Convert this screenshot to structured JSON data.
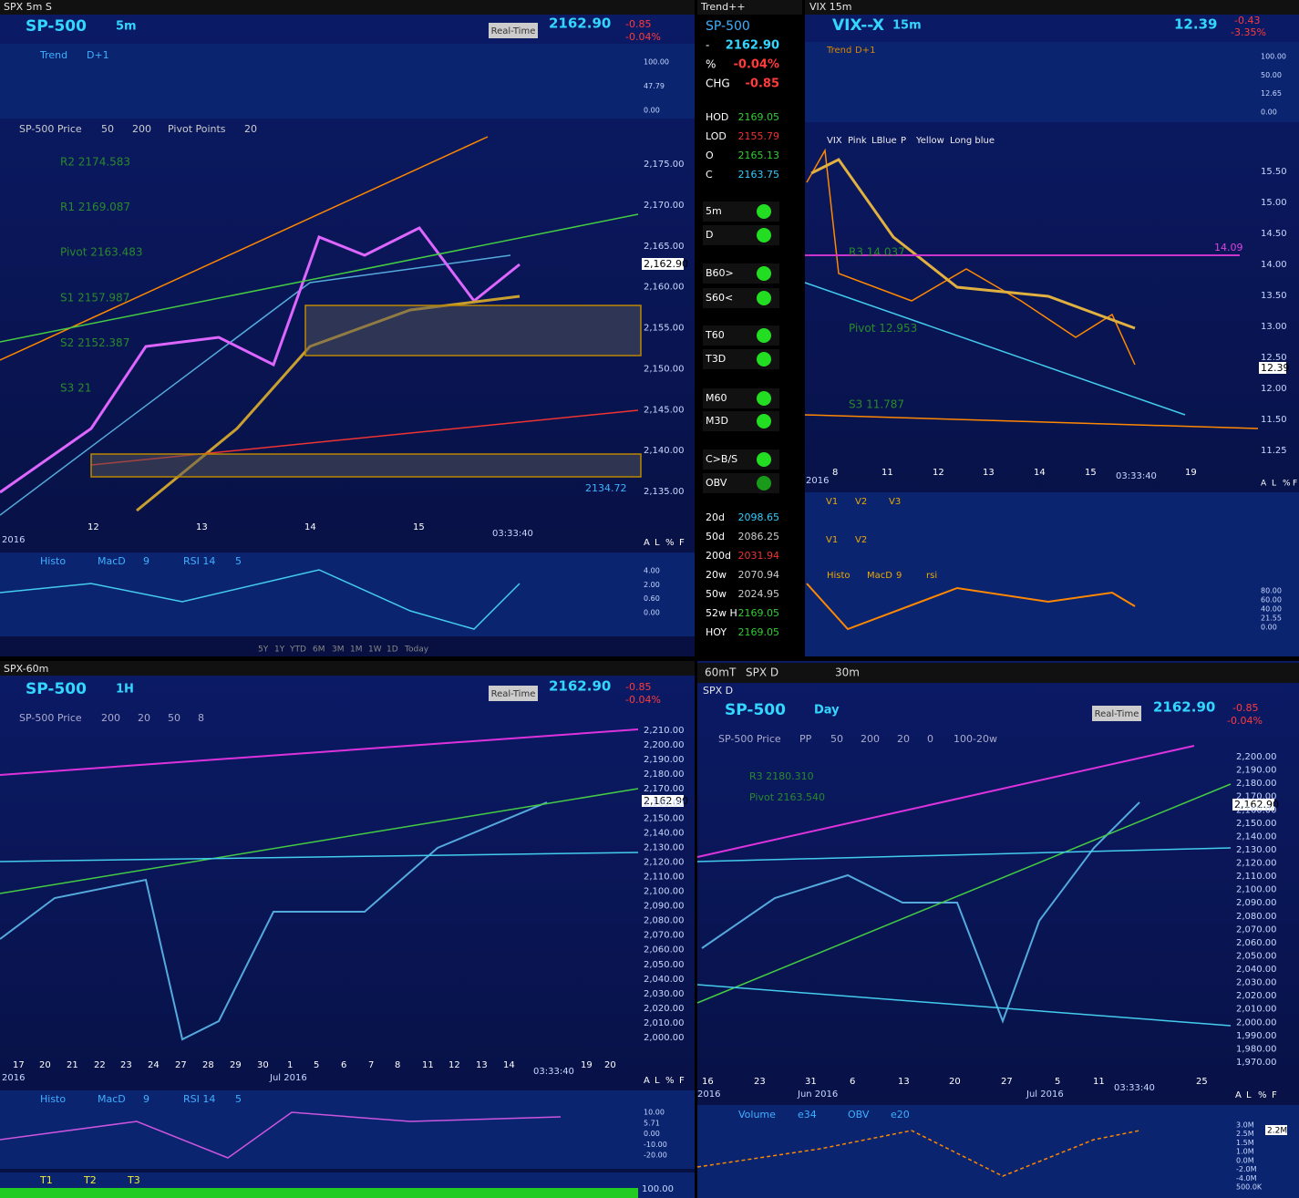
{
  "spx5m": {
    "window_title": "SPX 5m S",
    "symbol": "SP-500",
    "interval": "5m",
    "mode": "Real-Time",
    "price": "2162.90",
    "change": "-0.85",
    "pct": "-0.04%",
    "trend": [
      "Trend",
      "D+1"
    ],
    "trend_ticks": [
      "100.00",
      "47.79",
      "0.00"
    ],
    "price_labels": [
      "SP-500 Price",
      "50",
      "200",
      "Pivot Points",
      "20"
    ],
    "pivots": [
      "R2 2174.583",
      "R1 2169.087",
      "Pivot 2163.483",
      "S1 2157.987",
      "S2 2152.387",
      "S3 21"
    ],
    "yticks": [
      "2,175.00",
      "2,170.00",
      "2,165.00",
      "2,160.00",
      "2,155.00",
      "2,150.00",
      "2,145.00",
      "2,140.00",
      "2,135.00"
    ],
    "xticks": [
      "12",
      "13",
      "14",
      "15"
    ],
    "year": "2016",
    "time": "03:33:40",
    "last": "2,162.90",
    "level": "2134.72",
    "scale_buttons": [
      "A",
      "L",
      "%",
      "F"
    ],
    "lower_labels": [
      "Histo",
      "MacD",
      "9",
      "RSI 14",
      "5"
    ],
    "lower_ticks": [
      "4.00",
      "2.00",
      "0.60",
      "0.00"
    ],
    "ranges": [
      "5Y",
      "1Y",
      "YTD",
      "6M",
      "3M",
      "1M",
      "1W",
      "1D",
      "Today"
    ]
  },
  "trend_pp": {
    "window_title": "Trend++",
    "symbol": "SP-500",
    "quote": [
      [
        "-",
        "2162.90"
      ],
      [
        "%",
        "-0.04%"
      ],
      [
        "CHG",
        "-0.85"
      ]
    ],
    "day": [
      [
        "HOD",
        "2169.05"
      ],
      [
        "LOD",
        "2155.79"
      ],
      [
        "O",
        "2165.13"
      ],
      [
        "C",
        "2163.75"
      ]
    ],
    "signals": [
      "5m",
      "D",
      "B60>",
      "S60<",
      "T60",
      "T3D",
      "M60",
      "M3D",
      "C>B/S",
      "OBV"
    ],
    "averages": [
      [
        "20d",
        "2098.65"
      ],
      [
        "50d",
        "2086.25"
      ],
      [
        "200d",
        "2031.94"
      ],
      [
        "20w",
        "2070.94"
      ],
      [
        "50w",
        "2024.95"
      ],
      [
        "52w H",
        "2169.05"
      ],
      [
        "HOY",
        "2169.05"
      ]
    ]
  },
  "vix": {
    "window_title": "VIX 15m",
    "symbol": "VIX--X",
    "interval": "15m",
    "price": "12.39",
    "change": "-0.43",
    "pct": "-3.35%",
    "trend": [
      "Trend",
      "D+1"
    ],
    "trend_ticks": [
      "100.00",
      "50.00",
      "12.65",
      "0.00"
    ],
    "price_labels": [
      "VIX",
      "Pink",
      "LBlue",
      "P",
      "Yellow",
      "Long blue"
    ],
    "pivots": [
      "R3 14.037",
      "Pivot 12.953",
      "S3 11.787"
    ],
    "yticks": [
      "15.50",
      "15.00",
      "14.50",
      "14.00",
      "13.50",
      "13.00",
      "12.50",
      "12.00",
      "11.50",
      "11.25"
    ],
    "xticks": [
      "8",
      "11",
      "12",
      "13",
      "14",
      "15",
      "19"
    ],
    "year": "2016",
    "time": "03:33:40",
    "level": "14.09",
    "last": "12.39",
    "scale_buttons": [
      "A",
      "L",
      "%",
      "F"
    ],
    "vol1": [
      "V1",
      "V2",
      "V3"
    ],
    "vol2": [
      "V1",
      "V2"
    ],
    "lower_labels": [
      "Histo",
      "MacD",
      "9",
      "rsi"
    ],
    "lower_ticks": [
      "80.00",
      "60.00",
      "40.00",
      "21.55",
      "0.00"
    ]
  },
  "spx60": {
    "window_title": "SPX-60m",
    "symbol": "SP-500",
    "interval": "1H",
    "mode": "Real-Time",
    "price": "2162.90",
    "change": "-0.85",
    "pct": "-0.04%",
    "price_labels": [
      "SP-500 Price",
      "200",
      "20",
      "50",
      "8"
    ],
    "yticks": [
      "2,210.00",
      "2,200.00",
      "2,190.00",
      "2,180.00",
      "2,170.00",
      "2,160.00",
      "2,150.00",
      "2,140.00",
      "2,130.00",
      "2,120.00",
      "2,110.00",
      "2,100.00",
      "2,090.00",
      "2,080.00",
      "2,070.00",
      "2,060.00",
      "2,050.00",
      "2,040.00",
      "2,030.00",
      "2,020.00",
      "2,010.00",
      "2,000.00"
    ],
    "xticks": [
      "17",
      "20",
      "21",
      "22",
      "23",
      "24",
      "27",
      "28",
      "29",
      "30",
      "1",
      "5",
      "6",
      "7",
      "8",
      "11",
      "12",
      "13",
      "14",
      "19",
      "20"
    ],
    "month": "Jul 2016",
    "year": "2016",
    "time": "03:33:40",
    "last": "2,162.90",
    "scale_buttons": [
      "A",
      "L",
      "%",
      "F"
    ],
    "lower_labels": [
      "Histo",
      "MacD",
      "9",
      "RSI 14",
      "5"
    ],
    "lower_ticks": [
      "10.00",
      "5.71",
      "0.00",
      "-10.00",
      "-20.00"
    ],
    "trend_labels": [
      "T1",
      "T2",
      "T3"
    ],
    "trend_tick": "100.00"
  },
  "spxd": {
    "tabs": [
      "60mT",
      "SPX D",
      "30m"
    ],
    "window_title": "SPX D",
    "symbol": "SP-500",
    "interval": "Day",
    "mode": "Real-Time",
    "price": "2162.90",
    "change": "-0.85",
    "pct": "-0.04%",
    "price_labels": [
      "SP-500 Price",
      "PP",
      "50",
      "200",
      "20",
      "0",
      "100-20w"
    ],
    "pivots": [
      "R3 2180.310",
      "Pivot 2163.540"
    ],
    "yticks": [
      "2,200.00",
      "2,190.00",
      "2,180.00",
      "2,170.00",
      "2,160.00",
      "2,150.00",
      "2,140.00",
      "2,130.00",
      "2,120.00",
      "2,110.00",
      "2,100.00",
      "2,090.00",
      "2,080.00",
      "2,070.00",
      "2,060.00",
      "2,050.00",
      "2,040.00",
      "2,030.00",
      "2,020.00",
      "2,010.00",
      "2,000.00",
      "1,990.00",
      "1,980.00",
      "1,970.00"
    ],
    "xticks": [
      "16",
      "23",
      "31",
      "6",
      "13",
      "20",
      "27",
      "5",
      "11",
      "25"
    ],
    "months": [
      "Jun 2016",
      "Jul 2016"
    ],
    "year": "2016",
    "time": "03:33:40",
    "last": "2,162.90",
    "scale_buttons": [
      "A",
      "L",
      "%",
      "F"
    ],
    "lower_labels": [
      "Volume",
      "e34",
      "OBV",
      "e20"
    ],
    "lower_ticks": [
      "3.0M",
      "2.5M",
      "1.5M",
      "1.0M",
      "0.0M",
      "-2.0M",
      "-4.0M",
      "500.0K"
    ],
    "lower_box": "2.2M"
  }
}
